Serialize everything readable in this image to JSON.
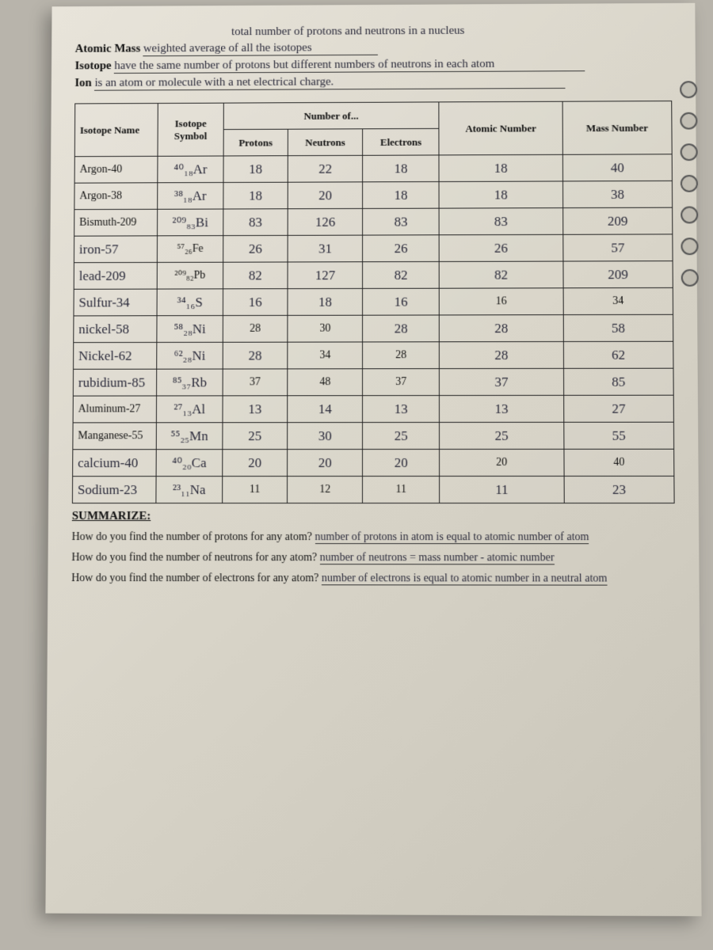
{
  "definitions": {
    "atomic_mass": {
      "label": "Atomic Mass",
      "answer": "weighted average of all the isotopes",
      "extra_top": "total number of protons and neutrons in a nucleus"
    },
    "isotope": {
      "label": "Isotope",
      "answer": "have the same number of protons but different numbers of neutrons in each atom"
    },
    "ion": {
      "label": "Ion",
      "answer": "is an atom or molecule with a net electrical charge."
    }
  },
  "table": {
    "headers": {
      "name": "Isotope Name",
      "symbol": "Isotope Symbol",
      "num_of": "Number of...",
      "protons": "Protons",
      "neutrons": "Neutrons",
      "electrons": "Electrons",
      "atomic_num": "Atomic Number",
      "mass_num": "Mass Number"
    },
    "rows": [
      {
        "name": "Argon-40",
        "name_printed": true,
        "sym": "⁴⁰₁₈Ar",
        "p": "18",
        "n": "22",
        "e": "18",
        "an": "18",
        "mn": "40"
      },
      {
        "name": "Argon-38",
        "name_printed": true,
        "sym": "³⁸₁₈Ar",
        "p": "18",
        "n": "20",
        "e": "18",
        "an": "18",
        "mn": "38"
      },
      {
        "name": "Bismuth-209",
        "name_printed": true,
        "sym": "²⁰⁹₈₃Bi",
        "p": "83",
        "n": "126",
        "e": "83",
        "an": "83",
        "mn": "209"
      },
      {
        "name": "iron-57",
        "name_printed": false,
        "sym": "⁵⁷₂₆Fe",
        "sym_printed": true,
        "p": "26",
        "n": "31",
        "e": "26",
        "an": "26",
        "mn": "57"
      },
      {
        "name": "lead-209",
        "name_printed": false,
        "sym": "²⁰⁹₈₂Pb",
        "sym_printed": true,
        "p": "82",
        "n": "127",
        "e": "82",
        "an": "82",
        "mn": "209"
      },
      {
        "name": "Sulfur-34",
        "name_printed": false,
        "sym": "³⁴₁₆S",
        "p": "16",
        "n": "18",
        "e": "16",
        "an": "16",
        "an_printed": true,
        "mn": "34",
        "mn_printed": true
      },
      {
        "name": "nickel-58",
        "name_printed": false,
        "sym": "⁵⁸₂₈Ni",
        "p": "28",
        "p_printed": true,
        "n": "30",
        "n_printed": true,
        "e": "28",
        "an": "28",
        "mn": "58"
      },
      {
        "name": "Nickel-62",
        "name_printed": false,
        "sym": "⁶²₂₈Ni",
        "p": "28",
        "n": "34",
        "n_printed": true,
        "e": "28",
        "e_printed": true,
        "an": "28",
        "mn": "62"
      },
      {
        "name": "rubidium-85",
        "name_printed": false,
        "sym": "⁸⁵₃₇Rb",
        "p": "37",
        "p_printed": true,
        "n": "48",
        "n_printed": true,
        "e": "37",
        "e_printed": true,
        "an": "37",
        "mn": "85"
      },
      {
        "name": "Aluminum-27",
        "name_printed": true,
        "sym": "²⁷₁₃Al",
        "p": "13",
        "n": "14",
        "e": "13",
        "an": "13",
        "mn": "27"
      },
      {
        "name": "Manganese-55",
        "name_printed": true,
        "sym": "⁵⁵₂₅Mn",
        "p": "25",
        "n": "30",
        "e": "25",
        "an": "25",
        "mn": "55"
      },
      {
        "name": "calcium-40",
        "name_printed": false,
        "sym": "⁴⁰₂₀Ca",
        "p": "20",
        "n": "20",
        "e": "20",
        "an": "20",
        "an_printed": true,
        "mn": "40",
        "mn_printed": true
      },
      {
        "name": "Sodium-23",
        "name_printed": false,
        "sym": "²³₁₁Na",
        "p": "11",
        "p_printed": true,
        "n": "12",
        "n_printed": true,
        "e": "11",
        "e_printed": true,
        "an": "11",
        "mn": "23"
      }
    ]
  },
  "summarize": {
    "title": "SUMMARIZE:",
    "q1": {
      "q": "How do you find the number of protons for any atom?",
      "a": "number of protons in atom is equal to atomic number of atom"
    },
    "q2": {
      "q": "How do you find the number of neutrons for any atom?",
      "a": "number of neutrons = mass number - atomic number"
    },
    "q3": {
      "q": "How do you find the number of electrons for any atom?",
      "a": "number of electrons is equal to atomic number in a neutral atom"
    }
  }
}
